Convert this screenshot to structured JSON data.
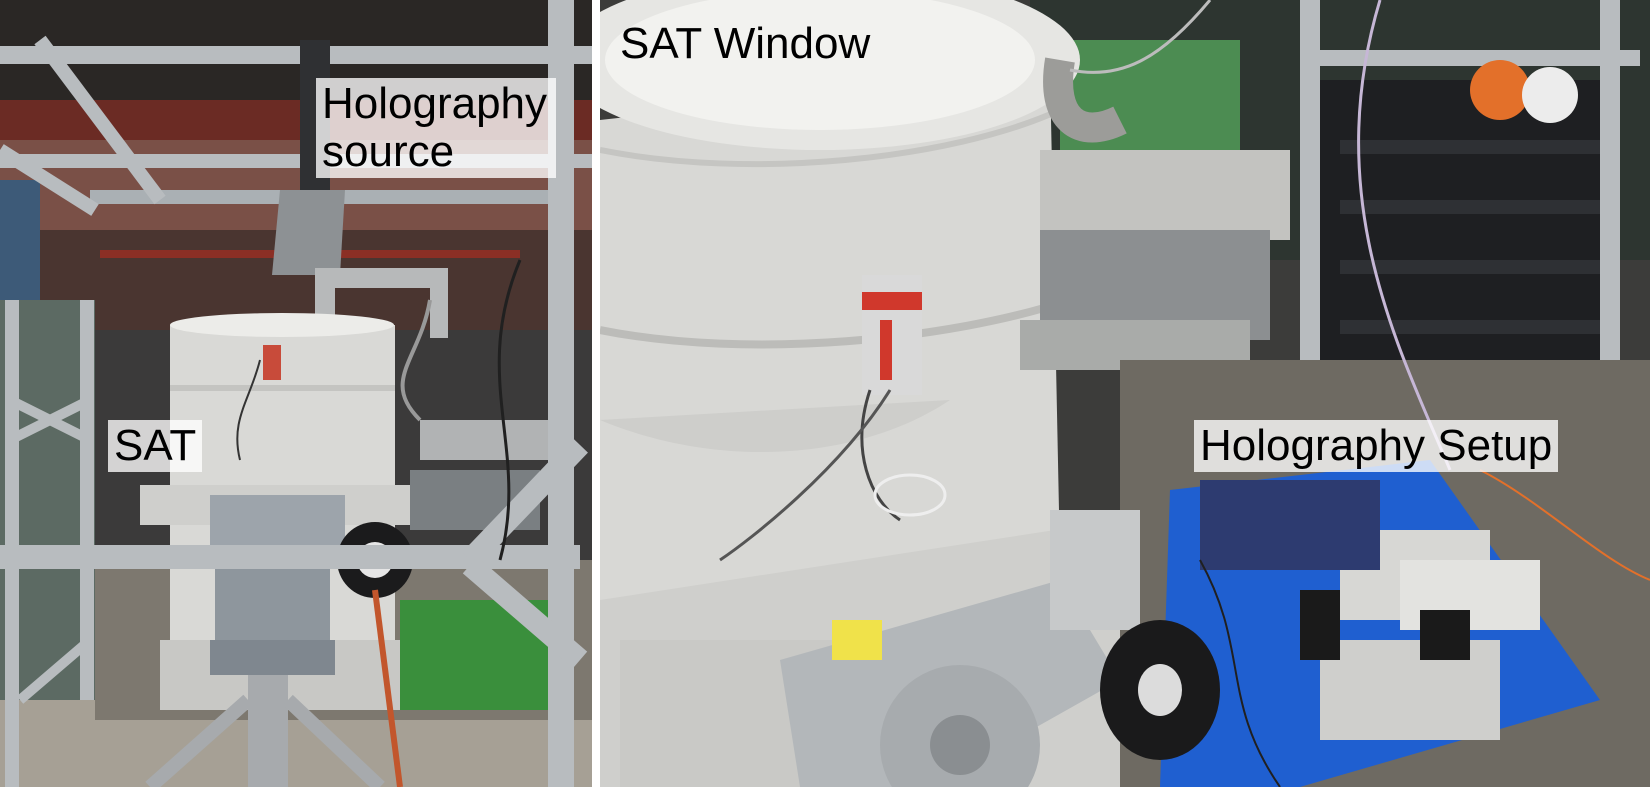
{
  "panels": {
    "left": {
      "labels": {
        "holography_source": "Holography source",
        "sat": "SAT"
      }
    },
    "right": {
      "labels": {
        "sat_window": "SAT Window",
        "holography_setup": "Holography Setup"
      }
    }
  },
  "colors": {
    "background": "#ffffff",
    "cryostat": "#d9d9d6",
    "frame_aluminum": "#b8bcbf",
    "floor": "#8f8a80",
    "rack": "#1e1f22",
    "table_blue": "#1f5fd0",
    "warning_orange": "#e3702a"
  },
  "icons": [
    "cryostat-photo",
    "holography-source-photo",
    "holography-setup-photo"
  ]
}
